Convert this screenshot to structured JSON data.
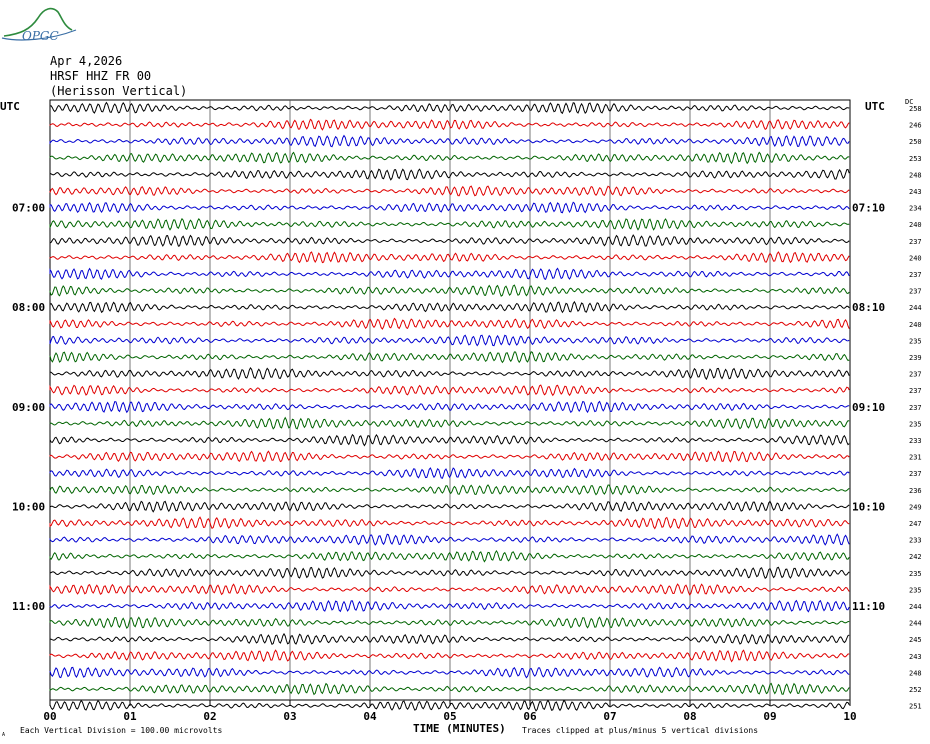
{
  "logo": {
    "text": "OPGC",
    "color": "#3a6ea5"
  },
  "header": {
    "date": "Apr 4,2026",
    "station": "HRSF HHZ FR 00",
    "description": "(Herisson Vertical)"
  },
  "left_axis_label": "UTC",
  "right_axis_label": "UTC",
  "dc_label": "DC",
  "footer": {
    "xlabel": "TIME (MINUTES)",
    "scale_note": "Each Vertical Division =  100.00 microvolts",
    "clip_note": "Traces clipped at plus/minus 5 vertical divisions",
    "corner_mark": "A"
  },
  "chart_data": {
    "type": "line",
    "x_ticks": [
      "00",
      "01",
      "02",
      "03",
      "04",
      "05",
      "06",
      "07",
      "08",
      "09",
      "10"
    ],
    "xlim": [
      0,
      10
    ],
    "left_time_labels": [
      {
        "row": 6,
        "text": "07:00"
      },
      {
        "row": 12,
        "text": "08:00"
      },
      {
        "row": 18,
        "text": "09:00"
      },
      {
        "row": 24,
        "text": "10:00"
      },
      {
        "row": 30,
        "text": "11:00"
      }
    ],
    "right_time_labels": [
      {
        "row": 6,
        "text": "07:10"
      },
      {
        "row": 12,
        "text": "08:10"
      },
      {
        "row": 18,
        "text": "09:10"
      },
      {
        "row": 24,
        "text": "10:10"
      },
      {
        "row": 30,
        "text": "11:10"
      }
    ],
    "trace_colors": [
      "#000000",
      "#e00000",
      "#0000d0",
      "#006400"
    ],
    "dc_offsets": [
      "258",
      "246",
      "250",
      "253",
      "248",
      "243",
      "234",
      "240",
      "237",
      "240",
      "237",
      "237",
      "244",
      "240",
      "235",
      "239",
      "237",
      "237",
      "237",
      "235",
      "233",
      "231",
      "237",
      "236",
      "249",
      "247",
      "233",
      "242",
      "235",
      "235",
      "244",
      "244",
      "245",
      "243",
      "248",
      "252",
      "251"
    ],
    "grid": true
  }
}
